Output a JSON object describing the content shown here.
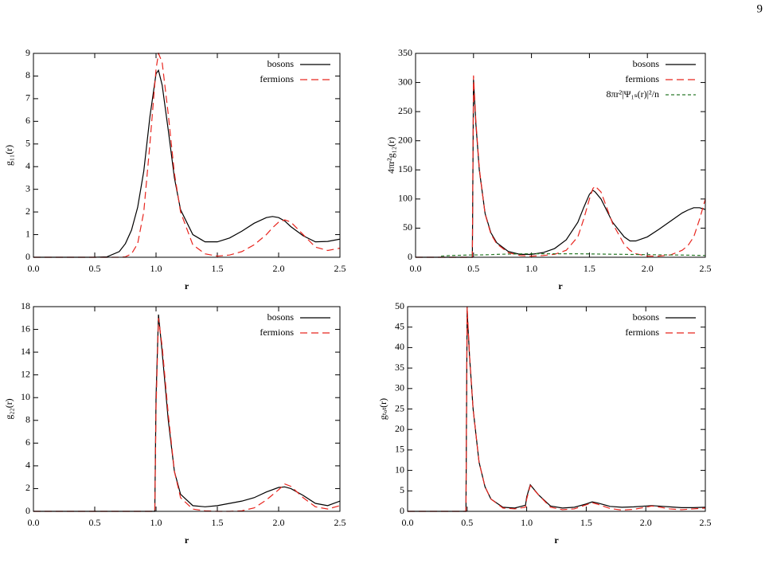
{
  "page_number": "9",
  "chart_data": [
    {
      "type": "line",
      "xlabel": "r",
      "ylabel": "g₁₁(r)",
      "x": [
        0,
        0.5,
        0.6,
        0.7,
        0.75,
        0.8,
        0.85,
        0.9,
        0.95,
        1.0,
        1.02,
        1.05,
        1.1,
        1.15,
        1.2,
        1.3,
        1.4,
        1.5,
        1.6,
        1.7,
        1.8,
        1.9,
        1.95,
        2.0,
        2.05,
        2.1,
        2.2,
        2.3,
        2.4,
        2.5
      ],
      "series": [
        {
          "name": "bosons",
          "color": "#000000",
          "style": "solid",
          "values": [
            0,
            0,
            0.02,
            0.25,
            0.6,
            1.2,
            2.2,
            3.8,
            6.2,
            8.1,
            8.25,
            7.6,
            5.6,
            3.5,
            2.1,
            1.0,
            0.68,
            0.68,
            0.85,
            1.15,
            1.5,
            1.75,
            1.8,
            1.75,
            1.6,
            1.35,
            0.95,
            0.68,
            0.7,
            0.8
          ]
        },
        {
          "name": "fermions",
          "color": "#e8261f",
          "style": "dashed",
          "values": [
            0,
            0,
            0,
            0,
            0.02,
            0.15,
            0.6,
            2.0,
            5.0,
            8.3,
            9.0,
            8.6,
            6.3,
            3.7,
            2.0,
            0.55,
            0.15,
            0.05,
            0.1,
            0.25,
            0.55,
            1.0,
            1.3,
            1.55,
            1.65,
            1.55,
            1.0,
            0.45,
            0.3,
            0.4
          ]
        }
      ],
      "xlim": [
        0,
        2.5
      ],
      "xticks": [
        {
          "value": 0,
          "label": "0.0"
        },
        0.5,
        {
          "value": 1,
          "label": "1.0"
        },
        1.5,
        {
          "value": 2,
          "label": "2.0"
        },
        2.5
      ],
      "ylim": [
        0,
        9
      ],
      "yticks": [
        0,
        1,
        2,
        3,
        4,
        5,
        6,
        7,
        8,
        9
      ],
      "legend": "top-right"
    },
    {
      "type": "line",
      "xlabel": "r",
      "ylabel": "4πr²g₁₂(r)",
      "x": [
        0,
        0.2,
        0.22,
        0.3,
        0.4,
        0.49,
        0.5,
        0.52,
        0.55,
        0.6,
        0.65,
        0.7,
        0.8,
        0.9,
        1.0,
        1.1,
        1.2,
        1.3,
        1.4,
        1.45,
        1.5,
        1.53,
        1.55,
        1.6,
        1.65,
        1.7,
        1.8,
        1.85,
        1.9,
        2.0,
        2.1,
        2.2,
        2.3,
        2.35,
        2.4,
        2.45,
        2.5
      ],
      "series": [
        {
          "name": "bosons",
          "color": "#000000",
          "style": "solid",
          "values": [
            0,
            0,
            0,
            0,
            0,
            0,
            305,
            230,
            150,
            75,
            42,
            25,
            10,
            5,
            5,
            8,
            15,
            30,
            60,
            85,
            108,
            115,
            112,
            100,
            80,
            60,
            35,
            28,
            28,
            35,
            48,
            62,
            76,
            81,
            85,
            85,
            82
          ]
        },
        {
          "name": "fermions",
          "color": "#e8261f",
          "style": "dashed",
          "values": [
            0,
            0,
            0,
            0,
            0,
            0,
            312,
            235,
            152,
            74,
            40,
            23,
            8,
            3,
            2,
            3,
            5,
            12,
            35,
            65,
            100,
            118,
            122,
            112,
            85,
            58,
            22,
            12,
            6,
            2,
            2,
            4,
            12,
            20,
            35,
            65,
            100
          ]
        },
        {
          "name": "8πr²|Ψ₁ₛ(r)|²/n",
          "color": "#2a7a2a",
          "style": "dotted",
          "values": [
            null,
            null,
            2,
            3,
            3.5,
            4,
            4,
            4,
            4,
            4.2,
            4.5,
            5,
            5.5,
            5.8,
            6,
            6,
            6,
            6,
            6,
            5.8,
            5.8,
            5.6,
            5.6,
            5.5,
            5.3,
            5.2,
            5,
            4.8,
            4.7,
            4.5,
            4.2,
            4,
            3.8,
            3.6,
            3.4,
            3.2,
            3
          ]
        }
      ],
      "xlim": [
        0,
        2.5
      ],
      "xticks": [
        {
          "value": 0,
          "label": "0.0"
        },
        0.5,
        {
          "value": 1,
          "label": "1.0"
        },
        1.5,
        {
          "value": 2,
          "label": "2.0"
        },
        2.5
      ],
      "ylim": [
        0,
        350
      ],
      "yticks": [
        0,
        50,
        100,
        150,
        200,
        250,
        300,
        350
      ],
      "legend": "top-right"
    },
    {
      "type": "line",
      "xlabel": "r",
      "ylabel": "g₂₂(r)",
      "x": [
        0,
        0.99,
        1.0,
        1.02,
        1.05,
        1.1,
        1.15,
        1.2,
        1.3,
        1.4,
        1.5,
        1.6,
        1.7,
        1.8,
        1.9,
        2.0,
        2.05,
        2.1,
        2.2,
        2.3,
        2.4,
        2.5
      ],
      "series": [
        {
          "name": "bosons",
          "color": "#000000",
          "style": "solid",
          "values": [
            0,
            0,
            10,
            17.3,
            14,
            8,
            3.5,
            1.5,
            0.5,
            0.4,
            0.5,
            0.7,
            0.9,
            1.2,
            1.7,
            2.1,
            2.15,
            2.0,
            1.4,
            0.7,
            0.5,
            0.9
          ]
        },
        {
          "name": "fermions",
          "color": "#e8261f",
          "style": "dashed",
          "values": [
            0,
            0,
            9,
            17,
            14.5,
            8.5,
            3.5,
            1.2,
            0.2,
            0.05,
            0,
            0,
            0.05,
            0.3,
            1.0,
            1.9,
            2.4,
            2.2,
            1.2,
            0.4,
            0.2,
            0.5
          ]
        }
      ],
      "xlim": [
        0,
        2.5
      ],
      "xticks": [
        {
          "value": 0,
          "label": "0.0"
        },
        0.5,
        {
          "value": 1,
          "label": "1.0"
        },
        1.5,
        {
          "value": 2,
          "label": "2.0"
        },
        2.5
      ],
      "ylim": [
        0,
        18
      ],
      "yticks": [
        0,
        2,
        4,
        6,
        8,
        10,
        12,
        14,
        16,
        18
      ],
      "legend": "top-right"
    },
    {
      "type": "line",
      "xlabel": "r",
      "ylabel": "gₜₒₜ(r)",
      "x": [
        0,
        0.49,
        0.5,
        0.52,
        0.55,
        0.6,
        0.65,
        0.7,
        0.8,
        0.9,
        0.99,
        1.0,
        1.03,
        1.1,
        1.2,
        1.3,
        1.4,
        1.5,
        1.55,
        1.6,
        1.7,
        1.8,
        1.9,
        2.0,
        2.05,
        2.1,
        2.2,
        2.3,
        2.4,
        2.5
      ],
      "series": [
        {
          "name": "bosons",
          "color": "#000000",
          "style": "solid",
          "values": [
            0,
            0,
            49,
            38,
            25,
            12,
            6,
            3,
            1,
            0.8,
            1.5,
            3.5,
            6.5,
            4,
            1.3,
            0.8,
            1,
            1.8,
            2.3,
            2,
            1.2,
            1,
            1.1,
            1.3,
            1.4,
            1.3,
            1.1,
            0.9,
            0.9,
            1.0
          ]
        },
        {
          "name": "fermions",
          "color": "#e8261f",
          "style": "dashed",
          "values": [
            0,
            0,
            50,
            38,
            25,
            12,
            6,
            3,
            0.8,
            0.6,
            1.0,
            3,
            6.3,
            4,
            1.0,
            0.4,
            0.6,
            1.6,
            2.1,
            1.7,
            0.7,
            0.3,
            0.5,
            1.0,
            1.3,
            1.1,
            0.6,
            0.4,
            0.6,
            0.8
          ]
        }
      ],
      "xlim": [
        0,
        2.5
      ],
      "xticks": [
        {
          "value": 0,
          "label": "0.0"
        },
        0.5,
        {
          "value": 1,
          "label": "1.0"
        },
        1.5,
        {
          "value": 2,
          "label": "2.0"
        },
        2.5
      ],
      "ylim": [
        0,
        50
      ],
      "yticks": [
        0,
        5,
        10,
        15,
        20,
        25,
        30,
        35,
        40,
        45,
        50
      ],
      "legend": "top-right"
    }
  ]
}
